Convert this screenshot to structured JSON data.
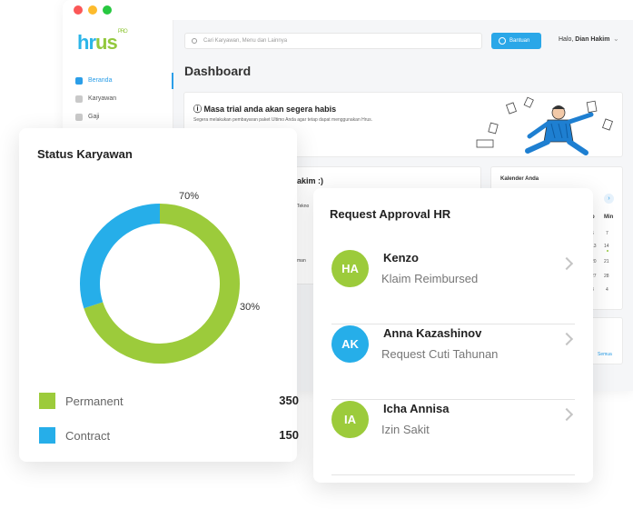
{
  "window": {
    "controls": [
      "close",
      "minimize",
      "maximize"
    ]
  },
  "brand": {
    "logo_main": "hr",
    "logo_accent": "us",
    "logo_sup": "PRO"
  },
  "sidebar": {
    "items": [
      {
        "label": "Beranda",
        "icon": "home-icon",
        "active": true
      },
      {
        "label": "Karyawan",
        "icon": "users-icon",
        "active": false
      },
      {
        "label": "Gaji",
        "icon": "wallet-icon",
        "active": false
      }
    ]
  },
  "header": {
    "search_placeholder": "Cari Karyawan, Menu dan Lainnya",
    "help_label": "Bantuan",
    "greeting": "Halo,",
    "user_name": "Dian Hakim"
  },
  "dashboard": {
    "title": "Dashboard",
    "trial_title": "Masa trial anda akan segera habis",
    "trial_subtitle": "Segera melakukan pembayaran paket Ultimo Anda agar tetap dapat menggunakan Hrus.",
    "welcome_fragment": "akim :)",
    "tekno_fragment": "Tekno",
    "man_fragment": "man",
    "calendar_title": "Kalender Anda",
    "calendar_headers": [
      "b",
      "Min"
    ],
    "calendar_days": [
      [
        "6",
        "7"
      ],
      [
        "13",
        "14"
      ],
      [
        "20",
        "21"
      ],
      [
        "27",
        "28"
      ],
      [
        "3",
        "4"
      ]
    ],
    "see_all": "Semua"
  },
  "status_card": {
    "title": "Status Karyawan",
    "chart_data": {
      "type": "pie",
      "variant": "donut",
      "series": [
        {
          "name": "Permanent",
          "value": 350,
          "percent": 70,
          "color": "#9ccb3b"
        },
        {
          "name": "Contract",
          "value": 150,
          "percent": 30,
          "color": "#26aee9"
        }
      ],
      "labels": [
        "70%",
        "30%"
      ]
    }
  },
  "request_card": {
    "title": "Request Approval HR",
    "items": [
      {
        "initials": "HA",
        "name": "Kenzo",
        "request": "Klaim Reimbursed",
        "color": "#9ccb3b"
      },
      {
        "initials": "AK",
        "name": "Anna Kazashinov",
        "request": "Request Cuti Tahunan",
        "color": "#26aee9"
      },
      {
        "initials": "IA",
        "name": "Icha Annisa",
        "request": "Izin Sakit",
        "color": "#9ccb3b"
      }
    ]
  }
}
